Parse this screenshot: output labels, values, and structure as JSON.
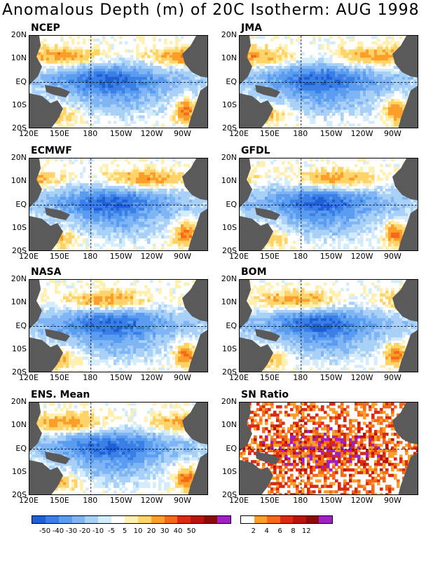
{
  "title": "Anomalous Depth (m) of 20C Isotherm: AUG 1998",
  "panels": [
    {
      "name": "NCEP"
    },
    {
      "name": "JMA"
    },
    {
      "name": "ECMWF"
    },
    {
      "name": "GFDL"
    },
    {
      "name": "NASA"
    },
    {
      "name": "BOM"
    },
    {
      "name": "ENS. Mean"
    },
    {
      "name": "SN Ratio"
    }
  ],
  "y_ticks": [
    "20N",
    "10N",
    "EQ",
    "10S",
    "20S"
  ],
  "x_ticks": [
    "120E",
    "150E",
    "180",
    "150W",
    "120W",
    "90W"
  ],
  "colorbar_anom": {
    "colors": [
      "#1f5fd6",
      "#3a7fe6",
      "#5a9cf0",
      "#7fb5f4",
      "#a9d0f7",
      "#d3ecfb",
      "#ffffff",
      "#fff0b0",
      "#fdd36a",
      "#fb9e2a",
      "#f56a1a",
      "#dc2a12",
      "#b8140c",
      "#8c0a08",
      "#a020c8"
    ],
    "labels": [
      "-50",
      "-40",
      "-30",
      "-20",
      "-10",
      "-5",
      "5",
      "10",
      "20",
      "30",
      "40",
      "50"
    ]
  },
  "colorbar_sn": {
    "colors": [
      "#ffffff",
      "#fb9e2a",
      "#f56a1a",
      "#dc2a12",
      "#b8140c",
      "#8c0a08",
      "#a020c8"
    ],
    "labels": [
      "2",
      "4",
      "6",
      "8",
      "12"
    ]
  },
  "land_color": "#5a5a5a"
}
